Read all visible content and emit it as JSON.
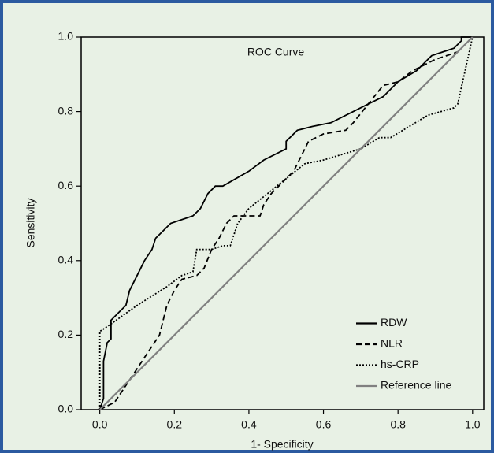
{
  "chart_data": {
    "type": "line",
    "title": "ROC Curve",
    "x_label": "1- Specificity",
    "y_label": "Sensitivity",
    "xlim": [
      -0.05,
      1.03
    ],
    "ylim": [
      0,
      1
    ],
    "xticks": [
      {
        "value": 0,
        "label": "0.0"
      },
      0.2,
      0.4,
      0.6,
      0.8,
      {
        "value": 1,
        "label": "1.0"
      }
    ],
    "yticks": [
      {
        "value": 0,
        "label": "0.0"
      },
      0.2,
      0.4,
      0.6,
      0.8,
      {
        "value": 1,
        "label": "1.0"
      }
    ],
    "background": "#e8f1e5",
    "legend": "lower right",
    "series": [
      {
        "name": "RDW",
        "color": "#000000",
        "dash": "solid",
        "x": [
          0,
          0.01,
          0.01,
          0.02,
          0.03,
          0.03,
          0.05,
          0.07,
          0.08,
          0.1,
          0.12,
          0.14,
          0.15,
          0.17,
          0.19,
          0.25,
          0.27,
          0.29,
          0.31,
          0.33,
          0.4,
          0.44,
          0.5,
          0.5,
          0.53,
          0.57,
          0.62,
          0.72,
          0.76,
          0.8,
          0.85,
          0.89,
          0.92,
          0.95,
          0.97,
          0.97,
          1.0
        ],
        "values": [
          0,
          0.03,
          0.13,
          0.18,
          0.19,
          0.24,
          0.26,
          0.28,
          0.32,
          0.36,
          0.4,
          0.43,
          0.46,
          0.48,
          0.5,
          0.52,
          0.54,
          0.58,
          0.6,
          0.6,
          0.64,
          0.67,
          0.7,
          0.72,
          0.75,
          0.76,
          0.77,
          0.82,
          0.84,
          0.88,
          0.91,
          0.95,
          0.96,
          0.97,
          0.99,
          1.0,
          1.0
        ]
      },
      {
        "name": "NLR",
        "color": "#000000",
        "dash": "dashed",
        "x": [
          0,
          0.02,
          0.04,
          0.06,
          0.08,
          0.1,
          0.12,
          0.14,
          0.16,
          0.17,
          0.18,
          0.2,
          0.22,
          0.26,
          0.28,
          0.3,
          0.32,
          0.34,
          0.36,
          0.43,
          0.44,
          0.46,
          0.48,
          0.5,
          0.52,
          0.54,
          0.56,
          0.6,
          0.66,
          0.68,
          0.72,
          0.76,
          0.8,
          0.84,
          0.9,
          0.96,
          1.0
        ],
        "values": [
          0,
          0.01,
          0.02,
          0.05,
          0.08,
          0.11,
          0.14,
          0.17,
          0.2,
          0.24,
          0.28,
          0.32,
          0.35,
          0.36,
          0.38,
          0.43,
          0.46,
          0.5,
          0.52,
          0.52,
          0.55,
          0.58,
          0.6,
          0.62,
          0.64,
          0.68,
          0.72,
          0.74,
          0.75,
          0.77,
          0.82,
          0.87,
          0.88,
          0.91,
          0.94,
          0.96,
          1.0
        ]
      },
      {
        "name": "hs-CRP",
        "color": "#000000",
        "dash": "dotted",
        "x": [
          0,
          0,
          0.03,
          0.1,
          0.18,
          0.22,
          0.25,
          0.26,
          0.3,
          0.33,
          0.35,
          0.37,
          0.4,
          0.45,
          0.5,
          0.55,
          0.6,
          0.7,
          0.75,
          0.78,
          0.83,
          0.88,
          0.95,
          0.96,
          1.0
        ],
        "values": [
          0,
          0.21,
          0.23,
          0.28,
          0.33,
          0.36,
          0.37,
          0.43,
          0.43,
          0.44,
          0.44,
          0.5,
          0.54,
          0.58,
          0.62,
          0.66,
          0.67,
          0.7,
          0.73,
          0.73,
          0.76,
          0.79,
          0.81,
          0.82,
          1.0
        ]
      },
      {
        "name": "Reference line",
        "color": "#808080",
        "dash": "solid",
        "x": [
          0,
          1
        ],
        "values": [
          0,
          1
        ]
      }
    ]
  }
}
